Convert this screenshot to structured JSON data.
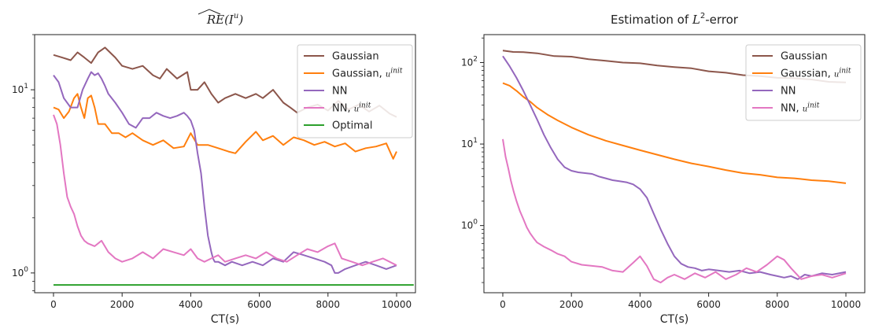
{
  "chart_data": [
    {
      "type": "line",
      "title": "RE(I^u)",
      "title_parts": {
        "hat": "RE",
        "paren": "(I",
        "sup": "u",
        "close": ")"
      },
      "xlabel": "CT(s)",
      "ylabel": "",
      "yscale": "log",
      "xlim": [
        -550,
        10550
      ],
      "ylim": [
        0.78,
        20
      ],
      "xticks": [
        0,
        2000,
        4000,
        6000,
        8000,
        10000
      ],
      "xtick_labels": [
        "0",
        "2000",
        "4000",
        "6000",
        "8000",
        "10000"
      ],
      "yticks": [
        1,
        10
      ],
      "ytick_labels": [
        {
          "base": "10",
          "exp": "0"
        },
        {
          "base": "10",
          "exp": "1"
        }
      ],
      "legend_position": "top-right",
      "series": [
        {
          "name": "Gaussian",
          "name_sup": "",
          "color": "#8c564b",
          "x": [
            0,
            250,
            500,
            700,
            900,
            1100,
            1300,
            1500,
            1800,
            2000,
            2300,
            2600,
            2900,
            3100,
            3300,
            3600,
            3900,
            4000,
            4200,
            4400,
            4600,
            4800,
            5000,
            5300,
            5600,
            5900,
            6100,
            6400,
            6700,
            6900,
            7100,
            7400,
            7700,
            8000,
            8300,
            8600,
            8900,
            9200,
            9500,
            9800,
            10000
          ],
          "y": [
            15.5,
            15,
            14.5,
            16,
            15,
            14,
            16,
            17,
            15,
            13.5,
            13,
            13.5,
            12,
            11.5,
            13,
            11.5,
            12.5,
            10,
            10,
            11,
            9.5,
            8.5,
            9,
            9.5,
            9,
            9.5,
            9,
            10,
            8.5,
            8,
            7.5,
            8,
            8.3,
            7.7,
            8.7,
            7.8,
            8.3,
            7.6,
            8.2,
            7.4,
            7.1
          ]
        },
        {
          "name": "Gaussian, ",
          "name_sup": "uinit",
          "color": "#ff7f0e",
          "x": [
            0,
            150,
            300,
            450,
            600,
            700,
            800,
            900,
            1000,
            1100,
            1200,
            1300,
            1500,
            1700,
            1900,
            2100,
            2300,
            2600,
            2900,
            3200,
            3500,
            3800,
            4000,
            4200,
            4500,
            4800,
            5100,
            5300,
            5600,
            5900,
            6100,
            6400,
            6700,
            7000,
            7300,
            7600,
            7900,
            8200,
            8500,
            8800,
            9100,
            9400,
            9700,
            9900,
            10000
          ],
          "y": [
            8,
            7.8,
            7,
            7.6,
            9,
            9.5,
            8,
            7,
            9,
            9.3,
            8,
            6.5,
            6.5,
            5.8,
            5.8,
            5.5,
            5.8,
            5.3,
            5,
            5.3,
            4.8,
            4.9,
            5.8,
            5,
            5,
            4.8,
            4.6,
            4.5,
            5.2,
            5.9,
            5.3,
            5.6,
            5,
            5.5,
            5.3,
            5,
            5.2,
            4.9,
            5.1,
            4.6,
            4.8,
            4.9,
            5.1,
            4.2,
            4.6
          ]
        },
        {
          "name": "NN",
          "name_sup": "",
          "color": "#9467bd",
          "x": [
            0,
            150,
            300,
            500,
            700,
            850,
            1000,
            1100,
            1200,
            1300,
            1400,
            1500,
            1600,
            1800,
            2000,
            2200,
            2400,
            2600,
            2800,
            3000,
            3200,
            3400,
            3600,
            3800,
            3900,
            4000,
            4100,
            4200,
            4300,
            4400,
            4500,
            4600,
            4650,
            4700,
            4800,
            5000,
            5200,
            5500,
            5800,
            6100,
            6400,
            6700,
            7000,
            7300,
            7600,
            7900,
            8100,
            8200,
            8300,
            8500,
            8800,
            9100,
            9400,
            9700,
            10000
          ],
          "y": [
            12,
            11,
            9,
            8,
            8,
            10,
            11.5,
            12.5,
            12,
            12.3,
            11.5,
            10.5,
            9.5,
            8.5,
            7.5,
            6.5,
            6.2,
            7,
            7,
            7.5,
            7.2,
            7,
            7.2,
            7.5,
            7.2,
            6.8,
            6,
            4.5,
            3.5,
            2.3,
            1.6,
            1.3,
            1.2,
            1.15,
            1.15,
            1.1,
            1.15,
            1.1,
            1.15,
            1.1,
            1.2,
            1.15,
            1.3,
            1.25,
            1.2,
            1.15,
            1.1,
            1.0,
            1.0,
            1.05,
            1.1,
            1.15,
            1.1,
            1.05,
            1.1
          ]
        },
        {
          "name": "NN, ",
          "name_sup": "uinit",
          "color": "#e377c2",
          "x": [
            0,
            100,
            200,
            300,
            400,
            500,
            600,
            700,
            800,
            900,
            1000,
            1200,
            1400,
            1600,
            1800,
            2000,
            2300,
            2600,
            2900,
            3200,
            3500,
            3800,
            4000,
            4200,
            4400,
            4600,
            4800,
            5000,
            5300,
            5600,
            5900,
            6200,
            6500,
            6800,
            7100,
            7400,
            7700,
            8000,
            8200,
            8400,
            8700,
            9000,
            9300,
            9600,
            10000
          ],
          "y": [
            7.3,
            6.5,
            5,
            3.5,
            2.6,
            2.3,
            2.1,
            1.8,
            1.6,
            1.5,
            1.45,
            1.4,
            1.5,
            1.3,
            1.2,
            1.15,
            1.2,
            1.3,
            1.2,
            1.35,
            1.3,
            1.25,
            1.35,
            1.2,
            1.15,
            1.2,
            1.25,
            1.15,
            1.2,
            1.25,
            1.2,
            1.3,
            1.2,
            1.15,
            1.25,
            1.35,
            1.3,
            1.4,
            1.45,
            1.2,
            1.15,
            1.1,
            1.15,
            1.2,
            1.1
          ]
        },
        {
          "name": "Optimal",
          "name_sup": "",
          "color": "#2ca02c",
          "x": [
            0,
            10500
          ],
          "y": [
            0.86,
            0.86
          ]
        }
      ]
    },
    {
      "type": "line",
      "title": "Estimation of L^2-error",
      "title_parts": {
        "text": "Estimation of ",
        "math": "L",
        "sup": "2",
        "after": "-error"
      },
      "xlabel": "CT(s)",
      "ylabel": "",
      "yscale": "log",
      "xlim": [
        -550,
        10550
      ],
      "ylim": [
        0.15,
        220
      ],
      "xticks": [
        0,
        2000,
        4000,
        6000,
        8000,
        10000
      ],
      "xtick_labels": [
        "0",
        "2000",
        "4000",
        "6000",
        "8000",
        "10000"
      ],
      "yticks": [
        1,
        10,
        100
      ],
      "ytick_labels": [
        {
          "base": "10",
          "exp": "0"
        },
        {
          "base": "10",
          "exp": "1"
        },
        {
          "base": "10",
          "exp": "2"
        }
      ],
      "legend_position": "top-right",
      "series": [
        {
          "name": "Gaussian",
          "name_sup": "",
          "color": "#8c564b",
          "x": [
            0,
            300,
            600,
            1000,
            1500,
            2000,
            2500,
            3000,
            3500,
            4000,
            4500,
            5000,
            5500,
            6000,
            6500,
            7000,
            7500,
            8000,
            8500,
            9000,
            9500,
            10000
          ],
          "y": [
            140,
            135,
            134,
            130,
            120,
            118,
            110,
            105,
            100,
            98,
            92,
            88,
            85,
            78,
            75,
            70,
            68,
            65,
            64,
            62,
            58,
            57
          ]
        },
        {
          "name": "Gaussian, ",
          "name_sup": "uinit",
          "color": "#ff7f0e",
          "x": [
            0,
            200,
            400,
            600,
            800,
            1000,
            1300,
            1600,
            2000,
            2500,
            3000,
            3500,
            4000,
            4500,
            5000,
            5500,
            6000,
            6500,
            7000,
            7500,
            8000,
            8500,
            9000,
            9500,
            10000
          ],
          "y": [
            56,
            52,
            45,
            38,
            33,
            28,
            23,
            19.5,
            16,
            13,
            11,
            9.6,
            8.4,
            7.4,
            6.5,
            5.8,
            5.3,
            4.8,
            4.4,
            4.2,
            3.9,
            3.8,
            3.6,
            3.5,
            3.3
          ]
        },
        {
          "name": "NN",
          "name_sup": "",
          "color": "#9467bd",
          "x": [
            0,
            200,
            400,
            600,
            800,
            1000,
            1200,
            1400,
            1600,
            1800,
            2000,
            2200,
            2400,
            2600,
            2800,
            3000,
            3200,
            3400,
            3600,
            3800,
            4000,
            4200,
            4400,
            4600,
            4800,
            5000,
            5200,
            5400,
            5600,
            5800,
            6000,
            6300,
            6600,
            6900,
            7200,
            7500,
            7800,
            8000,
            8200,
            8400,
            8600,
            8800,
            9000,
            9300,
            9600,
            10000
          ],
          "y": [
            120,
            90,
            65,
            45,
            30,
            20,
            13,
            9,
            6.5,
            5.2,
            4.7,
            4.5,
            4.4,
            4.3,
            4.0,
            3.8,
            3.6,
            3.5,
            3.4,
            3.2,
            2.8,
            2.2,
            1.4,
            0.9,
            0.6,
            0.42,
            0.34,
            0.31,
            0.3,
            0.28,
            0.29,
            0.28,
            0.27,
            0.28,
            0.26,
            0.27,
            0.25,
            0.24,
            0.23,
            0.24,
            0.22,
            0.25,
            0.24,
            0.26,
            0.25,
            0.27
          ]
        },
        {
          "name": "NN, ",
          "name_sup": "uinit",
          "color": "#e377c2",
          "x": [
            0,
            80,
            160,
            240,
            320,
            400,
            500,
            600,
            700,
            800,
            900,
            1000,
            1200,
            1400,
            1600,
            1800,
            2000,
            2300,
            2600,
            2900,
            3200,
            3500,
            3800,
            4000,
            4200,
            4400,
            4600,
            4800,
            5000,
            5300,
            5600,
            5900,
            6200,
            6500,
            6800,
            7100,
            7400,
            7700,
            8000,
            8200,
            8400,
            8700,
            9000,
            9300,
            9600,
            10000
          ],
          "y": [
            11.5,
            7,
            5,
            3.5,
            2.6,
            2,
            1.5,
            1.2,
            0.95,
            0.8,
            0.7,
            0.62,
            0.55,
            0.5,
            0.45,
            0.42,
            0.36,
            0.33,
            0.32,
            0.31,
            0.28,
            0.27,
            0.35,
            0.42,
            0.32,
            0.22,
            0.2,
            0.23,
            0.25,
            0.22,
            0.26,
            0.23,
            0.27,
            0.22,
            0.25,
            0.3,
            0.27,
            0.33,
            0.42,
            0.38,
            0.3,
            0.22,
            0.24,
            0.25,
            0.23,
            0.26
          ]
        }
      ]
    }
  ]
}
